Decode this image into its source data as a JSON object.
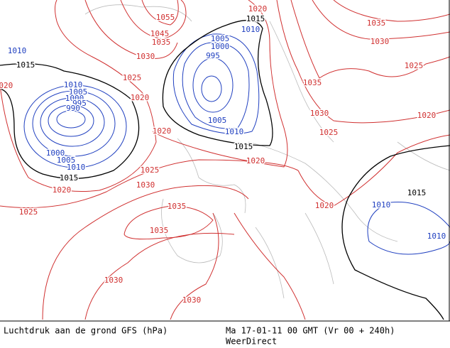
{
  "isobar_labels": [
    {
      "value": 1010,
      "color": "#2040c0"
    },
    {
      "value": 1015,
      "color": "#000000"
    },
    {
      "value": 1020,
      "color": "#d03030"
    },
    {
      "value": 1010,
      "color": "#2040c0"
    },
    {
      "value": 1005,
      "color": "#2040c0"
    },
    {
      "value": 1000,
      "color": "#2040c0"
    },
    {
      "value": 995,
      "color": "#2040c0"
    },
    {
      "value": 990,
      "color": "#2040c0"
    },
    {
      "value": 1000,
      "color": "#2040c0"
    },
    {
      "value": 1005,
      "color": "#2040c0"
    },
    {
      "value": 1010,
      "color": "#2040c0"
    },
    {
      "value": 1015,
      "color": "#000000"
    },
    {
      "value": 1020,
      "color": "#d03030"
    },
    {
      "value": 1025,
      "color": "#d03030"
    },
    {
      "value": 1005,
      "color": "#2040c0"
    },
    {
      "value": 1000,
      "color": "#2040c0"
    },
    {
      "value": 995,
      "color": "#2040c0"
    },
    {
      "value": 1005,
      "color": "#2040c0"
    },
    {
      "value": 1010,
      "color": "#2040c0"
    },
    {
      "value": 1015,
      "color": "#000000"
    },
    {
      "value": 1020,
      "color": "#d03030"
    },
    {
      "value": 1010,
      "color": "#2040c0"
    },
    {
      "value": 1015,
      "color": "#000000"
    },
    {
      "value": 1020,
      "color": "#d03030"
    },
    {
      "value": 1055,
      "color": "#d03030"
    },
    {
      "value": 1045,
      "color": "#d03030"
    },
    {
      "value": 1035,
      "color": "#d03030"
    },
    {
      "value": 1030,
      "color": "#d03030"
    },
    {
      "value": 1025,
      "color": "#d03030"
    },
    {
      "value": 1020,
      "color": "#d03030"
    },
    {
      "value": 1020,
      "color": "#d03030"
    },
    {
      "value": 1025,
      "color": "#d03030"
    },
    {
      "value": 1030,
      "color": "#d03030"
    },
    {
      "value": 1035,
      "color": "#d03030"
    },
    {
      "value": 1035,
      "color": "#d03030"
    },
    {
      "value": 1030,
      "color": "#d03030"
    },
    {
      "value": 1030,
      "color": "#d03030"
    },
    {
      "value": 1035,
      "color": "#d03030"
    },
    {
      "value": 1030,
      "color": "#d03030"
    },
    {
      "value": 1025,
      "color": "#d03030"
    },
    {
      "value": 1035,
      "color": "#d03030"
    },
    {
      "value": 1030,
      "color": "#d03030"
    },
    {
      "value": 1025,
      "color": "#d03030"
    },
    {
      "value": 1020,
      "color": "#d03030"
    },
    {
      "value": 1020,
      "color": "#d03030"
    },
    {
      "value": 1015,
      "color": "#000000"
    },
    {
      "value": 1010,
      "color": "#2040c0"
    },
    {
      "value": 1010,
      "color": "#2040c0"
    }
  ],
  "footer": {
    "title": "Luchtdruk aan de grond GFS (hPa)",
    "time": "Ma 17-01-11 00 GMT (Vr 00 + 240h)",
    "source": "WeerDirect"
  }
}
